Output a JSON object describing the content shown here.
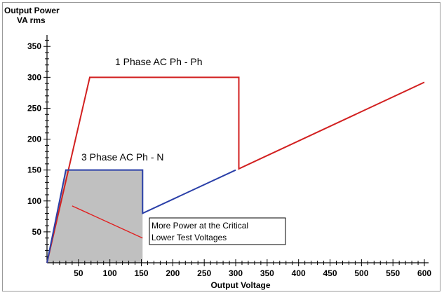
{
  "chart_data": {
    "type": "line",
    "ylabel_line1": "Output Power",
    "ylabel_line2": "VA rms",
    "xlabel": "Output Voltage",
    "xlim": [
      0,
      610
    ],
    "ylim": [
      0,
      365
    ],
    "x_ticks": [
      50,
      100,
      150,
      200,
      250,
      300,
      350,
      400,
      450,
      500,
      550,
      600
    ],
    "y_ticks": [
      50,
      100,
      150,
      200,
      250,
      300,
      350
    ],
    "grid": false,
    "series": [
      {
        "name": "1 Phase AC Ph - Ph",
        "color": "#d22020",
        "points": [
          [
            0,
            0
          ],
          [
            68,
            300
          ],
          [
            305,
            300
          ],
          [
            305,
            152
          ],
          [
            600,
            292
          ]
        ]
      },
      {
        "name": "3 Phase AC Ph - N",
        "color": "#2a3fa8",
        "points": [
          [
            0,
            0
          ],
          [
            30,
            150
          ],
          [
            152,
            150
          ],
          [
            152,
            80
          ],
          [
            300,
            150
          ]
        ]
      }
    ],
    "shaded_region": {
      "color": "#c0c0c0",
      "points": [
        [
          0,
          0
        ],
        [
          30,
          150
        ],
        [
          152,
          150
        ],
        [
          152,
          0
        ]
      ]
    },
    "annotation": {
      "lines": [
        "More Power at the Critical",
        "Lower Test Voltages"
      ],
      "pointer_color": "#e02020",
      "pointer_from": [
        40,
        92
      ],
      "pointer_to": [
        152,
        40
      ]
    }
  }
}
